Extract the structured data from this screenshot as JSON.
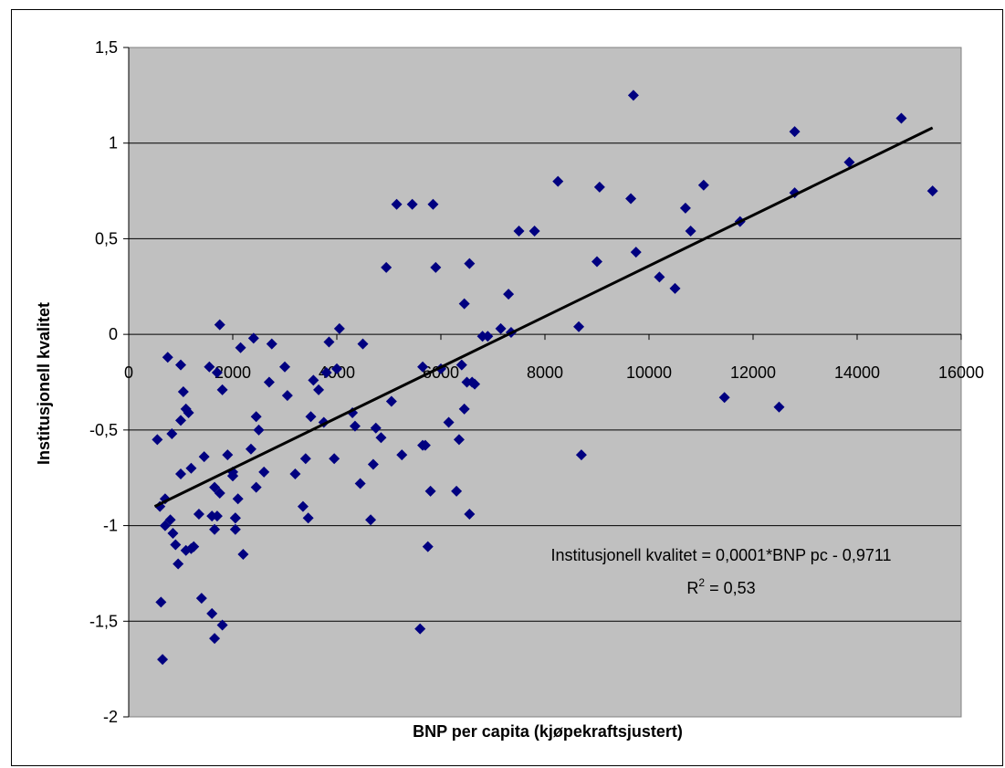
{
  "chart_data": {
    "type": "scatter",
    "title": "",
    "xlabel": "BNP per capita (kjøpekraftsjustert)",
    "ylabel": "Institusjonell kvalitet",
    "xlim": [
      0,
      16000
    ],
    "ylim": [
      -2,
      1.5
    ],
    "x_ticks": [
      "0",
      "2000",
      "4000",
      "6000",
      "8000",
      "10000",
      "12000",
      "14000",
      "16000"
    ],
    "y_ticks": [
      "1,5",
      "1",
      "0,5",
      "0",
      "-0,5",
      "-1",
      "-1,5",
      "-2"
    ],
    "y_tick_values": [
      1.5,
      1,
      0.5,
      0,
      -0.5,
      -1,
      -1.5,
      -2
    ],
    "x_tick_values": [
      0,
      2000,
      4000,
      6000,
      8000,
      10000,
      12000,
      14000,
      16000
    ],
    "grid": true,
    "legend": "none",
    "colors": {
      "plot_background": "#c0c0c0",
      "marker": "#000080",
      "trendline": "#000000",
      "gridline": "#000000"
    },
    "trendline": {
      "x": [
        500,
        15450
      ],
      "y": [
        -0.9,
        1.08
      ]
    },
    "annotation": {
      "equation": "Institusjonell kvalitet = 0,0001*BNP pc - 0,9711",
      "r2_prefix": "R",
      "r2_sup": "2",
      "r2_value": " = 0,53"
    },
    "series": [
      {
        "x": [
          550,
          620,
          650,
          700,
          750,
          800,
          830,
          850,
          900,
          950,
          1000,
          1050,
          1100,
          1150,
          1200,
          1250,
          1350,
          1450,
          1550,
          1600,
          1650,
          1700,
          1750,
          1800,
          2000,
          2050,
          2100,
          2200,
          2350,
          2450,
          2500,
          2600,
          2750,
          3050,
          3200,
          3350,
          3450,
          3550,
          3750,
          3850,
          3950,
          4050,
          4350,
          4450,
          4500,
          4650,
          4750,
          4850,
          4950,
          5050,
          5150,
          5250,
          5450,
          5650,
          5700,
          5750,
          5850,
          5900,
          6000,
          6150,
          6300,
          6400,
          6450,
          6550,
          6650,
          6800,
          6900,
          7150,
          7300,
          7350,
          7500,
          7800,
          8250,
          8650,
          8700,
          9000,
          9050,
          9650,
          9700,
          9750,
          10200,
          10500,
          10700,
          10800,
          11050,
          11450,
          11750,
          12500,
          12800,
          12800,
          13850,
          14850,
          15450,
          600,
          700,
          1000,
          1100,
          1200,
          1400,
          1600,
          1650,
          1700,
          1800,
          2000,
          2050,
          2150,
          2400,
          2700,
          3400,
          3500,
          3800,
          4000,
          4300,
          4700,
          5600,
          5800,
          6500,
          6550,
          2450,
          1650,
          1750,
          1900,
          2050,
          3000,
          3650,
          2000,
          1000,
          6350,
          5650,
          6450,
          6600
        ],
        "y": [
          -0.55,
          -1.4,
          -1.7,
          -1.0,
          -0.12,
          -0.97,
          -0.52,
          -1.04,
          -1.1,
          -1.2,
          -0.73,
          -0.3,
          -1.13,
          -0.41,
          -0.7,
          -1.11,
          -0.94,
          -0.64,
          -0.17,
          -0.95,
          -0.8,
          -0.2,
          0.05,
          -0.29,
          -0.74,
          -0.96,
          -0.86,
          -1.15,
          -0.6,
          -0.8,
          -0.5,
          -0.72,
          -0.05,
          -0.32,
          -0.73,
          -0.9,
          -0.96,
          -0.24,
          -0.46,
          -0.04,
          -0.65,
          0.03,
          -0.48,
          -0.78,
          -0.05,
          -0.97,
          -0.49,
          -0.54,
          0.35,
          -0.35,
          0.68,
          -0.63,
          0.68,
          -0.17,
          -0.58,
          -1.11,
          0.68,
          0.35,
          -0.18,
          -0.46,
          -0.82,
          -0.16,
          0.16,
          0.37,
          -0.26,
          -0.01,
          -0.01,
          0.03,
          0.21,
          0.01,
          0.54,
          0.54,
          0.8,
          0.04,
          -0.63,
          0.38,
          0.77,
          0.71,
          1.25,
          0.43,
          0.3,
          0.24,
          0.66,
          0.54,
          0.78,
          -0.33,
          0.59,
          -0.38,
          0.74,
          1.06,
          0.9,
          1.13,
          0.75,
          -0.9,
          -0.86,
          -0.16,
          -0.39,
          -1.12,
          -1.38,
          -1.46,
          -1.59,
          -0.95,
          -1.52,
          -0.72,
          -1.02,
          -0.07,
          -0.02,
          -0.25,
          -0.65,
          -0.43,
          -0.2,
          -0.18,
          -0.41,
          -0.68,
          -1.54,
          -0.82,
          -0.25,
          -0.94,
          -0.43,
          -1.02,
          -0.83,
          -0.63,
          -0.96,
          -0.17,
          -0.29,
          -0.74,
          -0.45,
          -0.55,
          -0.58,
          -0.39,
          -0.25
        ]
      }
    ]
  }
}
